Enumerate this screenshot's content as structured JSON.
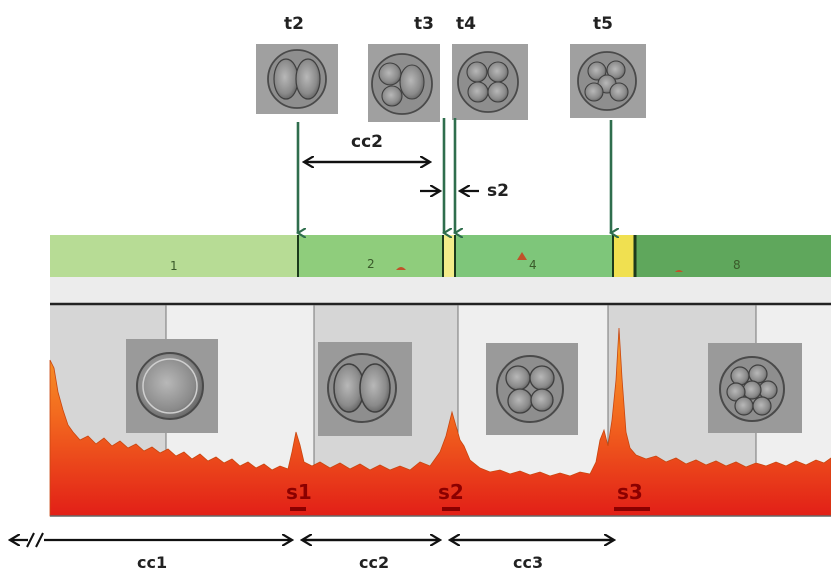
{
  "time_labels": [
    "t2",
    "t3",
    "t4",
    "t5"
  ],
  "interval_labels": {
    "top_cc2": "cc2",
    "top_s2": "s2",
    "bottom": [
      "cc1",
      "cc2",
      "cc3"
    ]
  },
  "synchrony_labels": [
    "s1",
    "s2",
    "s3"
  ],
  "cell_count_band": [
    "1",
    "2",
    "4",
    "8"
  ],
  "colors": {
    "arrow_green": "#2f6e4d",
    "band_1": "#b7dc95",
    "band_2": "#8fcd7c",
    "band_4": "#7ec67a",
    "band_8": "#5fa75c",
    "signal_top": "#f58220",
    "signal_bottom": "#e8331a",
    "synchrony_bar": "#8b0000",
    "panel_bg": "#d9d9d9"
  }
}
